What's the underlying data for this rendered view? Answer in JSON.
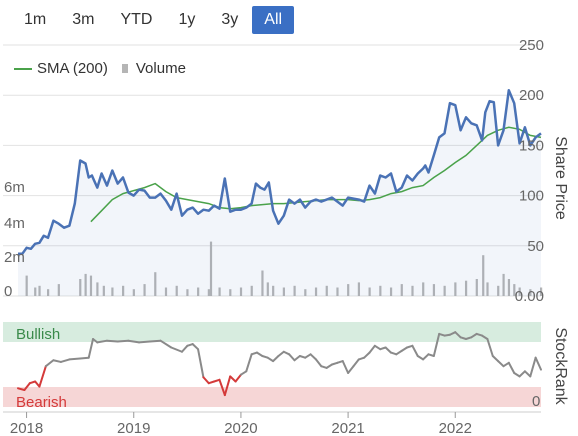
{
  "range_selector": {
    "buttons": [
      "1m",
      "3m",
      "YTD",
      "1y",
      "3y",
      "All"
    ],
    "active": "All",
    "active_color": "#3a6fc4"
  },
  "chart_data": {
    "type": "line",
    "x_ticks": [
      "2018",
      "2019",
      "2020",
      "2021",
      "2022"
    ],
    "y_right_ticks": [
      0,
      50,
      100,
      150,
      200,
      250
    ],
    "y_right_tick_labels": [
      "0.00",
      "50",
      "100",
      "150",
      "200",
      "250"
    ],
    "y_right_label": "Share Price",
    "y_left_ticks": [
      "0",
      "2m",
      "4m",
      "6m"
    ],
    "legend": [
      "SMA (200)",
      "Volume"
    ],
    "ylim": [
      0,
      250
    ],
    "colors": {
      "price": "#4a72b5",
      "sma": "#4aa24a",
      "volume": "#b5b5b5",
      "stockrank_line": "#8a8a8a",
      "stockrank_bearish": "#d43a3a",
      "bullish_band": "#d7ecdf",
      "bearish_band": "#f6d6d6"
    },
    "series": [
      {
        "kind": "price",
        "x": [
          2017.92,
          2017.96,
          2018.0,
          2018.04,
          2018.08,
          2018.12,
          2018.16,
          2018.2,
          2018.25,
          2018.3,
          2018.35,
          2018.4,
          2018.45,
          2018.5,
          2018.55,
          2018.58,
          2018.61,
          2018.63,
          2018.66,
          2018.7,
          2018.75,
          2018.8,
          2018.85,
          2018.9,
          2018.95,
          2019.0,
          2019.05,
          2019.1,
          2019.15,
          2019.2,
          2019.25,
          2019.3,
          2019.35,
          2019.4,
          2019.45,
          2019.5,
          2019.55,
          2019.6,
          2019.65,
          2019.7,
          2019.75,
          2019.8,
          2019.85,
          2019.9,
          2019.95,
          2020.0,
          2020.05,
          2020.1,
          2020.14,
          2020.18,
          2020.22,
          2020.26,
          2020.3,
          2020.35,
          2020.4,
          2020.45,
          2020.5,
          2020.55,
          2020.6,
          2020.65,
          2020.7,
          2020.75,
          2020.8,
          2020.85,
          2020.9,
          2020.95,
          2021.0,
          2021.05,
          2021.1,
          2021.15,
          2021.2,
          2021.25,
          2021.3,
          2021.35,
          2021.4,
          2021.45,
          2021.5,
          2021.55,
          2021.6,
          2021.65,
          2021.7,
          2021.72,
          2021.75,
          2021.8,
          2021.85,
          2021.9,
          2021.95,
          2022.0,
          2022.05,
          2022.1,
          2022.15,
          2022.2,
          2022.25,
          2022.28,
          2022.32,
          2022.36,
          2022.4,
          2022.45,
          2022.5,
          2022.55,
          2022.6,
          2022.65,
          2022.7,
          2022.75,
          2022.8
        ],
        "y": [
          42,
          42,
          48,
          47,
          52,
          53,
          60,
          58,
          75,
          72,
          68,
          70,
          92,
          135,
          132,
          118,
          120,
          115,
          108,
          122,
          110,
          125,
          112,
          118,
          103,
          100,
          106,
          105,
          98,
          98,
          102,
          95,
          86,
          102,
          80,
          86,
          88,
          82,
          86,
          85,
          90,
          87,
          117,
          84,
          86,
          86,
          88,
          92,
          112,
          108,
          106,
          113,
          85,
          72,
          80,
          96,
          92,
          96,
          88,
          94,
          96,
          94,
          96,
          98,
          94,
          90,
          98,
          97,
          96,
          94,
          110,
          102,
          120,
          118,
          122,
          104,
          108,
          120,
          115,
          122,
          127,
          130,
          123,
          140,
          158,
          162,
          192,
          190,
          165,
          178,
          172,
          170,
          155,
          183,
          194,
          193,
          150,
          165,
          205,
          192,
          152,
          168,
          150,
          158,
          162
        ]
      },
      {
        "kind": "sma",
        "x": [
          2018.6,
          2018.7,
          2018.8,
          2018.9,
          2019.0,
          2019.1,
          2019.2,
          2019.3,
          2019.4,
          2019.5,
          2019.6,
          2019.7,
          2019.8,
          2019.9,
          2020.0,
          2020.1,
          2020.2,
          2020.3,
          2020.4,
          2020.5,
          2020.6,
          2020.7,
          2020.8,
          2020.9,
          2021.0,
          2021.1,
          2021.2,
          2021.3,
          2021.4,
          2021.5,
          2021.6,
          2021.7,
          2021.8,
          2021.9,
          2022.0,
          2022.1,
          2022.2,
          2022.3,
          2022.4,
          2022.5,
          2022.6,
          2022.7,
          2022.8
        ],
        "y": [
          74,
          85,
          96,
          102,
          105,
          108,
          112,
          104,
          98,
          96,
          94,
          92,
          88,
          87,
          88,
          90,
          91,
          92,
          92,
          93,
          94,
          95,
          96,
          96,
          96,
          95,
          96,
          98,
          102,
          104,
          108,
          110,
          118,
          125,
          133,
          140,
          150,
          160,
          165,
          168,
          166,
          160,
          158
        ]
      }
    ],
    "volume": [
      {
        "x": 2018.0,
        "v": 1.2
      },
      {
        "x": 2018.08,
        "v": 0.5
      },
      {
        "x": 2018.12,
        "v": 0.6
      },
      {
        "x": 2018.2,
        "v": 0.4
      },
      {
        "x": 2018.3,
        "v": 0.7
      },
      {
        "x": 2018.5,
        "v": 1.0
      },
      {
        "x": 2018.55,
        "v": 1.3
      },
      {
        "x": 2018.6,
        "v": 1.2
      },
      {
        "x": 2018.66,
        "v": 0.8
      },
      {
        "x": 2018.72,
        "v": 0.6
      },
      {
        "x": 2018.8,
        "v": 0.5
      },
      {
        "x": 2018.9,
        "v": 0.6
      },
      {
        "x": 2019.0,
        "v": 0.4
      },
      {
        "x": 2019.1,
        "v": 0.7
      },
      {
        "x": 2019.2,
        "v": 1.4
      },
      {
        "x": 2019.3,
        "v": 0.5
      },
      {
        "x": 2019.4,
        "v": 0.6
      },
      {
        "x": 2019.5,
        "v": 0.4
      },
      {
        "x": 2019.6,
        "v": 0.5
      },
      {
        "x": 2019.7,
        "v": 0.4
      },
      {
        "x": 2019.72,
        "v": 3.2
      },
      {
        "x": 2019.8,
        "v": 0.5
      },
      {
        "x": 2019.9,
        "v": 0.4
      },
      {
        "x": 2020.0,
        "v": 0.5
      },
      {
        "x": 2020.1,
        "v": 0.6
      },
      {
        "x": 2020.2,
        "v": 1.5
      },
      {
        "x": 2020.25,
        "v": 0.8
      },
      {
        "x": 2020.3,
        "v": 0.6
      },
      {
        "x": 2020.4,
        "v": 0.5
      },
      {
        "x": 2020.5,
        "v": 0.6
      },
      {
        "x": 2020.6,
        "v": 0.4
      },
      {
        "x": 2020.7,
        "v": 0.5
      },
      {
        "x": 2020.8,
        "v": 0.6
      },
      {
        "x": 2020.9,
        "v": 0.5
      },
      {
        "x": 2021.0,
        "v": 0.7
      },
      {
        "x": 2021.1,
        "v": 0.8
      },
      {
        "x": 2021.2,
        "v": 0.5
      },
      {
        "x": 2021.3,
        "v": 0.6
      },
      {
        "x": 2021.4,
        "v": 0.5
      },
      {
        "x": 2021.5,
        "v": 0.7
      },
      {
        "x": 2021.6,
        "v": 0.6
      },
      {
        "x": 2021.7,
        "v": 0.8
      },
      {
        "x": 2021.8,
        "v": 0.7
      },
      {
        "x": 2021.9,
        "v": 0.6
      },
      {
        "x": 2022.0,
        "v": 0.8
      },
      {
        "x": 2022.1,
        "v": 0.9
      },
      {
        "x": 2022.2,
        "v": 1.0
      },
      {
        "x": 2022.26,
        "v": 2.4
      },
      {
        "x": 2022.3,
        "v": 0.8
      },
      {
        "x": 2022.4,
        "v": 0.6
      },
      {
        "x": 2022.45,
        "v": 1.3
      },
      {
        "x": 2022.5,
        "v": 1.0
      },
      {
        "x": 2022.55,
        "v": 0.7
      },
      {
        "x": 2022.6,
        "v": 0.5
      },
      {
        "x": 2022.7,
        "v": 0.4
      },
      {
        "x": 2022.8,
        "v": 0.5
      }
    ],
    "stockrank": {
      "label": "StockRank",
      "bands": [
        "Bullish",
        "Bearish"
      ],
      "zero_label": "0",
      "x": [
        2017.92,
        2017.98,
        2018.03,
        2018.08,
        2018.12,
        2018.18,
        2018.25,
        2018.32,
        2018.4,
        2018.5,
        2018.58,
        2018.62,
        2018.66,
        2018.75,
        2018.85,
        2018.95,
        2019.05,
        2019.15,
        2019.25,
        2019.35,
        2019.45,
        2019.5,
        2019.55,
        2019.6,
        2019.65,
        2019.7,
        2019.75,
        2019.8,
        2019.85,
        2019.9,
        2019.95,
        2020.0,
        2020.05,
        2020.1,
        2020.15,
        2020.2,
        2020.25,
        2020.3,
        2020.35,
        2020.4,
        2020.45,
        2020.5,
        2020.55,
        2020.6,
        2020.65,
        2020.7,
        2020.75,
        2020.8,
        2020.85,
        2020.9,
        2020.95,
        2021.0,
        2021.05,
        2021.1,
        2021.15,
        2021.2,
        2021.25,
        2021.3,
        2021.35,
        2021.4,
        2021.45,
        2021.5,
        2021.55,
        2021.6,
        2021.65,
        2021.7,
        2021.75,
        2021.8,
        2021.85,
        2021.9,
        2021.95,
        2022.0,
        2022.05,
        2022.1,
        2022.15,
        2022.2,
        2022.25,
        2022.3,
        2022.35,
        2022.4,
        2022.45,
        2022.5,
        2022.55,
        2022.6,
        2022.65,
        2022.7,
        2022.75,
        2022.8
      ],
      "y": [
        22,
        20,
        28,
        30,
        24,
        48,
        55,
        53,
        56,
        57,
        58,
        80,
        76,
        78,
        77,
        78,
        76,
        77,
        78,
        70,
        65,
        72,
        74,
        68,
        35,
        28,
        30,
        32,
        14,
        36,
        30,
        38,
        42,
        62,
        64,
        60,
        58,
        54,
        60,
        65,
        62,
        55,
        60,
        58,
        62,
        56,
        48,
        46,
        50,
        52,
        54,
        40,
        48,
        56,
        58,
        64,
        72,
        68,
        70,
        64,
        62,
        66,
        70,
        72,
        60,
        56,
        62,
        60,
        86,
        84,
        85,
        88,
        82,
        80,
        82,
        86,
        84,
        80,
        60,
        54,
        48,
        52,
        40,
        36,
        42,
        36,
        58,
        44
      ]
    }
  }
}
